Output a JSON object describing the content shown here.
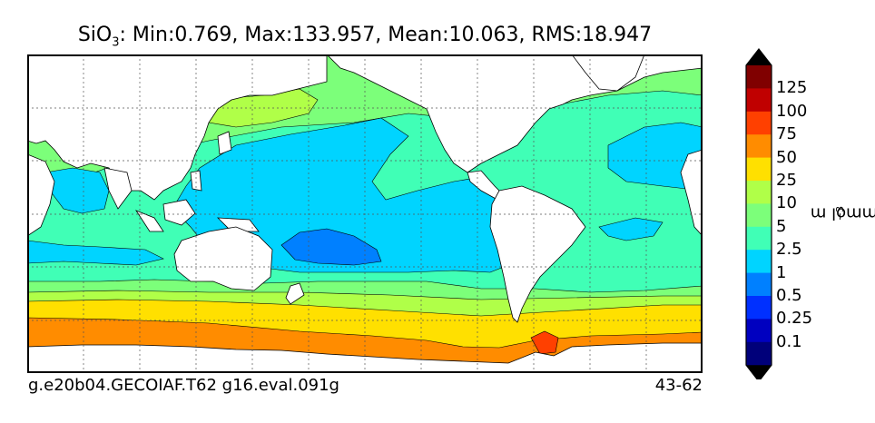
{
  "title": {
    "variable": "SiO",
    "variable_sub": "3",
    "stats": ": Min:0.769, Max:133.957, Mean:10.063, RMS:18.947"
  },
  "colorbar": {
    "units_label": "mmol m",
    "units_exponent": "−3",
    "ticks": [
      "125",
      "100",
      "75",
      "50",
      "25",
      "10",
      "5",
      "2.5",
      "1",
      "0.5",
      "0.25",
      "0.1"
    ],
    "colors": [
      "#800000",
      "#c00000",
      "#ff4000",
      "#ff8c00",
      "#ffe000",
      "#b0ff48",
      "#7cff7a",
      "#40ffb6",
      "#00d4ff",
      "#0080ff",
      "#0030ff",
      "#0000c0",
      "#00007a"
    ],
    "extend": "both"
  },
  "footer": {
    "case_id": "g.e20b04.GECOIAF.T62 g16.eval.091g",
    "years": "43-62"
  },
  "colors": {
    "land": "#ffffff",
    "band_over_1": "#00d4ff",
    "band_1_to_2_5": "#40ffb6",
    "band_2_5_to_5": "#7cff7a",
    "band_5_to_10": "#b0ff48",
    "band_10_to_25": "#ffe000",
    "band_25_to_50": "#ff8c00",
    "band_50_to_75": "#ff4000",
    "band_under_1": "#0080ff"
  }
}
